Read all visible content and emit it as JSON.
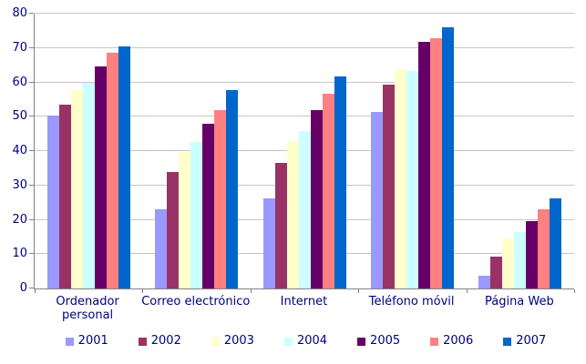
{
  "chart_data": {
    "type": "bar",
    "title": "",
    "xlabel": "",
    "ylabel": "",
    "categories": [
      "Ordenador personal",
      "Correo electrónico",
      "Internet",
      "Teléfono móvil",
      "Página Web"
    ],
    "series": [
      {
        "name": "2001",
        "color": "#9999FF",
        "values": [
          50.3,
          23.0,
          26.3,
          51.3,
          3.7
        ]
      },
      {
        "name": "2002",
        "color": "#993366",
        "values": [
          53.5,
          34.0,
          36.5,
          59.3,
          9.4
        ]
      },
      {
        "name": "2003",
        "color": "#FFFFCC",
        "values": [
          58.0,
          39.8,
          42.8,
          63.8,
          14.7
        ]
      },
      {
        "name": "2004",
        "color": "#CCFFFF",
        "values": [
          60.0,
          42.6,
          45.8,
          63.3,
          16.3
        ]
      },
      {
        "name": "2005",
        "color": "#660066",
        "values": [
          64.6,
          48.0,
          52.0,
          71.8,
          19.6
        ]
      },
      {
        "name": "2006",
        "color": "#FF8080",
        "values": [
          68.5,
          52.0,
          56.6,
          72.8,
          23.1
        ]
      },
      {
        "name": "2007",
        "color": "#0066CC",
        "values": [
          70.6,
          57.8,
          61.6,
          76.0,
          26.2
        ]
      }
    ],
    "ylim": [
      0,
      80
    ],
    "yticks": [
      0,
      10,
      20,
      30,
      40,
      50,
      60,
      70,
      80
    ],
    "grid": true,
    "legend_position": "bottom",
    "style": {
      "background_color": "#FFFFFF",
      "text_color": "#000080",
      "gridline_color": "#C6C6C6",
      "axis_color": "#848284"
    }
  }
}
